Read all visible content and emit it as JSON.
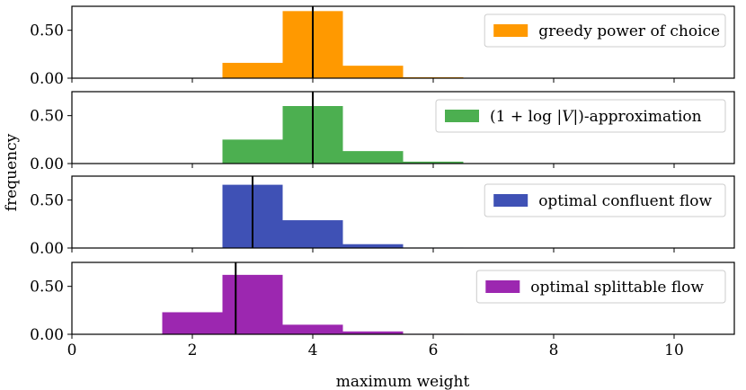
{
  "chart_data": {
    "type": "bar",
    "layout": "stacked-panels-shared-x",
    "xlabel": "maximum weight",
    "ylabel": "frequency",
    "xlim": [
      0,
      11
    ],
    "xticks": [
      0,
      2,
      4,
      6,
      8,
      10
    ],
    "xtick_labels": [
      "0",
      "2",
      "4",
      "6",
      "8",
      "10"
    ],
    "ylim": [
      0,
      0.75
    ],
    "yticks": [
      0,
      0.5
    ],
    "ytick_labels": [
      "0.00",
      "0.50"
    ],
    "bin_width": 1,
    "legend_position": "top-right",
    "series": [
      {
        "name": "greedy power of choice",
        "color": "#ff9900",
        "bins": [
          2.5,
          3.5,
          4.5,
          5.5
        ],
        "values": [
          0.16,
          0.7,
          0.13,
          0.01
        ],
        "mean": 4.0
      },
      {
        "name": "(1 + log |V|)-approximation",
        "label_parts": [
          "(1 + log |",
          "V",
          "|)-approximation"
        ],
        "color": "#4caf50",
        "bins": [
          2.5,
          3.5,
          4.5,
          5.5
        ],
        "values": [
          0.25,
          0.6,
          0.13,
          0.02
        ],
        "mean": 4.0
      },
      {
        "name": "optimal confluent flow",
        "color": "#3f51b5",
        "bins": [
          2.5,
          3.5,
          4.5,
          5.5
        ],
        "values": [
          0.66,
          0.29,
          0.04,
          0.005
        ],
        "mean": 3.0
      },
      {
        "name": "optimal splittable flow",
        "color": "#9c27b0",
        "bins": [
          1.5,
          2.5,
          3.5,
          4.5,
          5.5
        ],
        "values": [
          0.23,
          0.62,
          0.1,
          0.03,
          0.005
        ],
        "mean": 2.72
      }
    ]
  }
}
